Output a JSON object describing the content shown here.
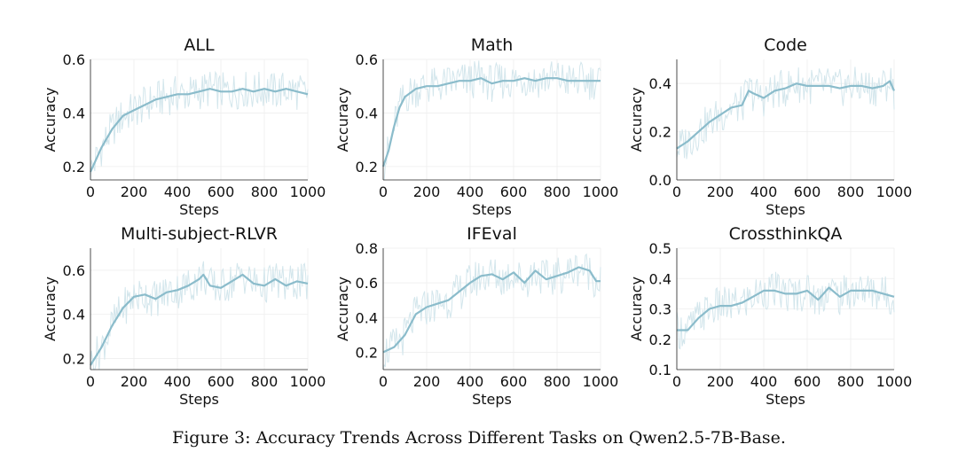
{
  "caption": "Figure 3: Accuracy Trends Across Different Tasks on Qwen2.5-7B-Base.",
  "colors": {
    "line": "#8bbccb",
    "raw": "#d3e6ec",
    "grid": "#eeeeee",
    "axis": "#222222"
  },
  "chart_data": [
    {
      "type": "line",
      "title": "ALL",
      "xlabel": "Steps",
      "ylabel": "Accuracy",
      "xlim": [
        0,
        1000
      ],
      "ylim": [
        0.15,
        0.6
      ],
      "xticks": [
        "0",
        "200",
        "400",
        "600",
        "800",
        "1000"
      ],
      "yticks": [
        "0.2",
        "0.4",
        "0.6"
      ],
      "grid": true,
      "series": [
        {
          "x": [
            0,
            50,
            100,
            150,
            200,
            250,
            300,
            350,
            400,
            450,
            500,
            550,
            600,
            650,
            700,
            750,
            800,
            850,
            900,
            950,
            1000
          ],
          "values": [
            0.18,
            0.27,
            0.34,
            0.39,
            0.41,
            0.43,
            0.45,
            0.46,
            0.47,
            0.47,
            0.48,
            0.49,
            0.48,
            0.48,
            0.49,
            0.48,
            0.49,
            0.48,
            0.49,
            0.48,
            0.47
          ]
        }
      ]
    },
    {
      "type": "line",
      "title": "Math",
      "xlabel": "Steps",
      "ylabel": "Accuracy",
      "xlim": [
        0,
        1000
      ],
      "ylim": [
        0.15,
        0.6
      ],
      "xticks": [
        "0",
        "200",
        "400",
        "600",
        "800",
        "1000"
      ],
      "yticks": [
        "0.2",
        "0.4",
        "0.6"
      ],
      "grid": true,
      "series": [
        {
          "x": [
            0,
            25,
            50,
            75,
            100,
            150,
            200,
            250,
            300,
            350,
            400,
            450,
            500,
            550,
            600,
            650,
            700,
            750,
            800,
            850,
            900,
            950,
            1000
          ],
          "values": [
            0.2,
            0.26,
            0.35,
            0.42,
            0.46,
            0.49,
            0.5,
            0.5,
            0.51,
            0.52,
            0.52,
            0.53,
            0.51,
            0.52,
            0.52,
            0.53,
            0.52,
            0.53,
            0.53,
            0.52,
            0.52,
            0.52,
            0.52
          ]
        }
      ]
    },
    {
      "type": "line",
      "title": "Code",
      "xlabel": "Steps",
      "ylabel": "Accuracy",
      "xlim": [
        0,
        1000
      ],
      "ylim": [
        0.0,
        0.5
      ],
      "xticks": [
        "0",
        "200",
        "400",
        "600",
        "800",
        "1000"
      ],
      "yticks": [
        "0.0",
        "0.2",
        "0.4"
      ],
      "grid": true,
      "series": [
        {
          "x": [
            0,
            50,
            100,
            150,
            200,
            250,
            300,
            330,
            350,
            400,
            450,
            500,
            550,
            600,
            650,
            700,
            750,
            800,
            850,
            900,
            950,
            980,
            1000
          ],
          "values": [
            0.13,
            0.16,
            0.2,
            0.24,
            0.27,
            0.3,
            0.31,
            0.37,
            0.36,
            0.34,
            0.37,
            0.38,
            0.4,
            0.39,
            0.39,
            0.39,
            0.38,
            0.39,
            0.39,
            0.38,
            0.39,
            0.41,
            0.37
          ]
        }
      ]
    },
    {
      "type": "line",
      "title": "Multi-subject-RLVR",
      "xlabel": "Steps",
      "ylabel": "Accuracy",
      "xlim": [
        0,
        1000
      ],
      "ylim": [
        0.15,
        0.7
      ],
      "xticks": [
        "0",
        "200",
        "400",
        "600",
        "800",
        "1000"
      ],
      "yticks": [
        "0.2",
        "0.4",
        "0.6"
      ],
      "grid": true,
      "series": [
        {
          "x": [
            0,
            50,
            100,
            150,
            200,
            250,
            300,
            350,
            400,
            450,
            500,
            520,
            550,
            600,
            650,
            700,
            750,
            800,
            850,
            900,
            950,
            1000
          ],
          "values": [
            0.17,
            0.25,
            0.35,
            0.43,
            0.48,
            0.49,
            0.47,
            0.5,
            0.51,
            0.53,
            0.56,
            0.58,
            0.53,
            0.52,
            0.55,
            0.58,
            0.54,
            0.53,
            0.56,
            0.53,
            0.55,
            0.54
          ]
        }
      ]
    },
    {
      "type": "line",
      "title": "IFEval",
      "xlabel": "Steps",
      "ylabel": "Accuracy",
      "xlim": [
        0,
        1000
      ],
      "ylim": [
        0.1,
        0.8
      ],
      "xticks": [
        "0",
        "200",
        "400",
        "600",
        "800",
        "1000"
      ],
      "yticks": [
        "0.2",
        "0.4",
        "0.6",
        "0.8"
      ],
      "grid": true,
      "series": [
        {
          "x": [
            0,
            50,
            100,
            150,
            200,
            250,
            300,
            350,
            400,
            450,
            500,
            550,
            600,
            650,
            700,
            750,
            800,
            850,
            900,
            950,
            980,
            1000
          ],
          "values": [
            0.2,
            0.23,
            0.3,
            0.42,
            0.46,
            0.48,
            0.5,
            0.55,
            0.6,
            0.64,
            0.65,
            0.62,
            0.66,
            0.6,
            0.67,
            0.62,
            0.64,
            0.66,
            0.69,
            0.67,
            0.61,
            0.61
          ]
        }
      ]
    },
    {
      "type": "line",
      "title": "CrossthinkQA",
      "xlabel": "Steps",
      "ylabel": "Accuracy",
      "xlim": [
        0,
        1000
      ],
      "ylim": [
        0.1,
        0.5
      ],
      "xticks": [
        "0",
        "200",
        "400",
        "600",
        "800",
        "1000"
      ],
      "yticks": [
        "0.1",
        "0.2",
        "0.3",
        "0.4",
        "0.5"
      ],
      "grid": true,
      "series": [
        {
          "x": [
            0,
            50,
            100,
            150,
            200,
            250,
            300,
            350,
            400,
            450,
            500,
            550,
            600,
            650,
            700,
            750,
            800,
            850,
            900,
            950,
            1000
          ],
          "values": [
            0.23,
            0.23,
            0.27,
            0.3,
            0.31,
            0.31,
            0.32,
            0.34,
            0.36,
            0.36,
            0.35,
            0.35,
            0.36,
            0.33,
            0.37,
            0.34,
            0.36,
            0.36,
            0.36,
            0.35,
            0.34
          ]
        }
      ]
    }
  ]
}
